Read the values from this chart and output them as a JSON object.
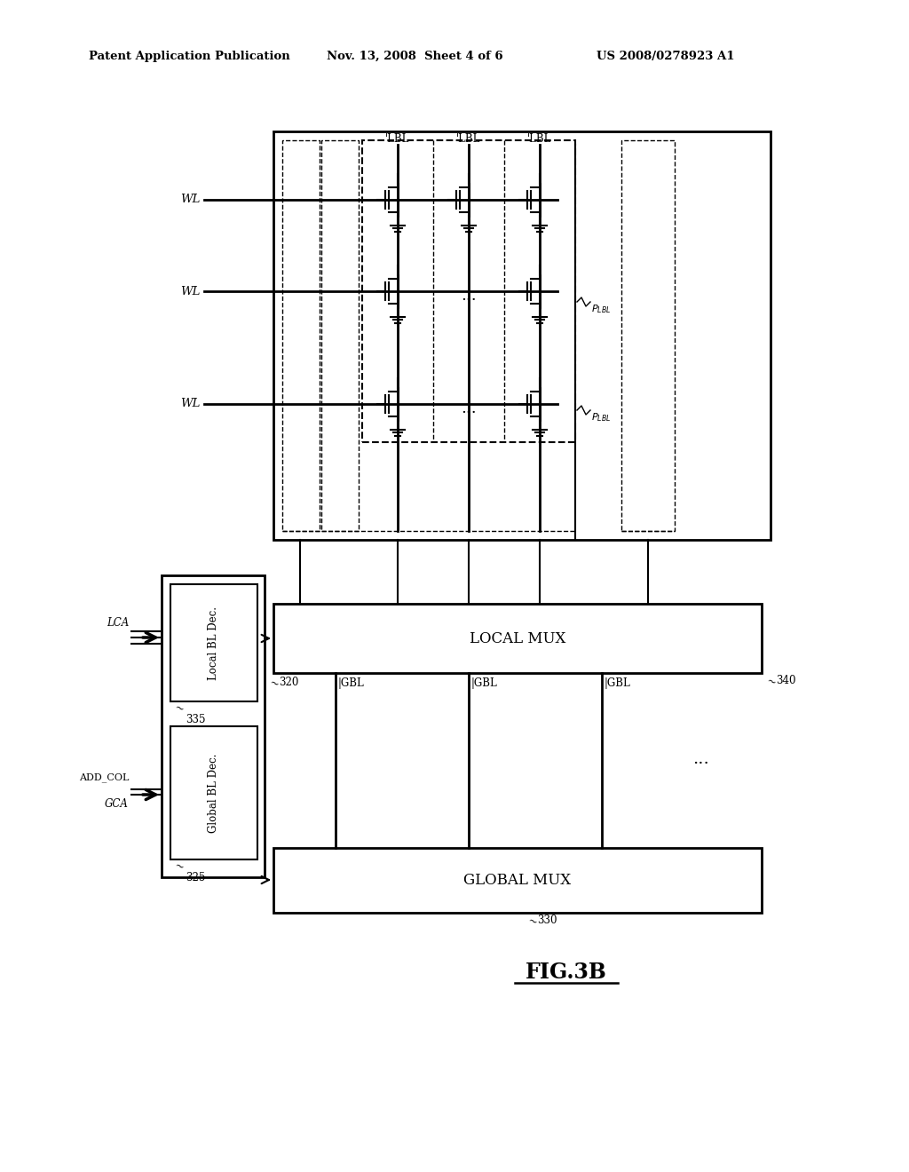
{
  "bg_color": "#ffffff",
  "header_left": "Patent Application Publication",
  "header_mid": "Nov. 13, 2008  Sheet 4 of 6",
  "header_right": "US 2008/0278923 A1",
  "fig_label": "FIG.3B",
  "lw_thin": 1.0,
  "lw_med": 1.5,
  "lw_thick": 2.0
}
